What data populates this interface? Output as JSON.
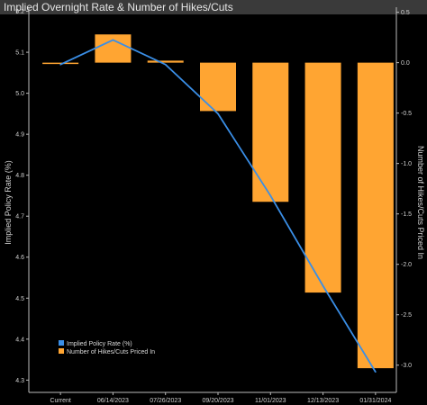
{
  "title": "Implied Overnight Rate & Number of Hikes/Cuts",
  "chart_data": {
    "type": "bar",
    "categories": [
      "Current",
      "06/14/2023",
      "07/26/2023",
      "09/20/2023",
      "11/01/2023",
      "12/13/2023",
      "01/31/2024"
    ],
    "series": [
      {
        "name": "Implied Policy Rate (%)",
        "type": "line",
        "axis": "left",
        "color": "#3a8ee6",
        "values": [
          5.07,
          5.13,
          5.07,
          4.95,
          4.75,
          4.53,
          4.32
        ]
      },
      {
        "name": "Number of Hikes/Cuts Priced In",
        "type": "bar",
        "axis": "right",
        "color": "#ffa532",
        "values": [
          0.0,
          0.28,
          0.02,
          -0.48,
          -1.38,
          -2.28,
          -3.03
        ]
      }
    ],
    "ylabel": "Implied Policy Rate (%)",
    "y2label": "Number of Hikes/Cuts Priced In",
    "ylim": [
      4.27,
      5.21
    ],
    "yticks": [
      "4.3",
      "4.4",
      "4.5",
      "4.6",
      "4.7",
      "4.8",
      "4.9",
      "5.0",
      "5.1",
      "5.2"
    ],
    "y2lim": [
      -3.27,
      0.55
    ],
    "y2ticks": [
      "0.5",
      "0.0",
      "-0.5",
      "-1.0",
      "-1.5",
      "-2.0",
      "-2.5",
      "-3.0"
    ],
    "grid": false,
    "legend_position": "bottom-left"
  }
}
